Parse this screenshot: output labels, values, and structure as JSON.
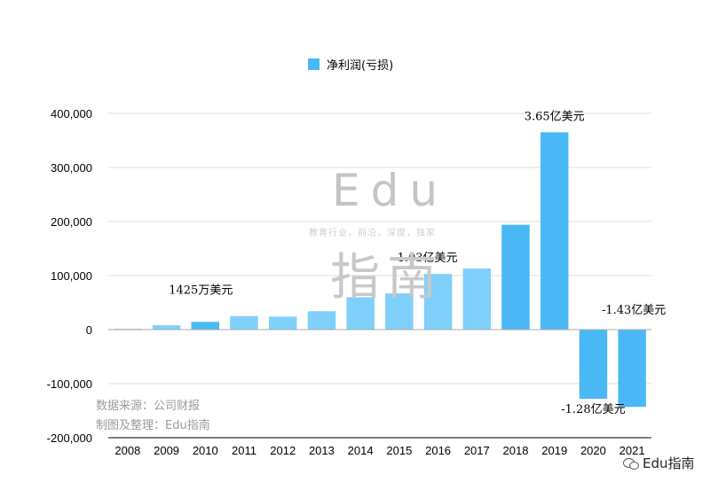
{
  "chart_data": {
    "type": "bar",
    "legend": "净利润(亏损)",
    "categories": [
      "2008",
      "2009",
      "2010",
      "2011",
      "2012",
      "2013",
      "2014",
      "2015",
      "2016",
      "2017",
      "2018",
      "2019",
      "2020",
      "2021"
    ],
    "series": [
      {
        "name": "净利润(亏损)",
        "values": [
          1500,
          8000,
          14250,
          25000,
          24000,
          34000,
          60000,
          67000,
          103000,
          113000,
          194000,
          365000,
          -128000,
          -143000
        ]
      }
    ],
    "ylim": [
      -200000,
      400000
    ],
    "yticks": [
      400000,
      300000,
      200000,
      100000,
      0,
      -100000,
      -200000
    ],
    "ytick_labels": [
      "400,000",
      "300,000",
      "200,000",
      "100,000",
      "0",
      "-100,000",
      "-200,000"
    ],
    "annotations": [
      {
        "category": "2010",
        "value": 14250,
        "text": "1425万美元"
      },
      {
        "category": "2016",
        "value": 103000,
        "text": "1.03亿美元"
      },
      {
        "category": "2019",
        "value": 365000,
        "text": "3.65亿美元"
      },
      {
        "category": "2020",
        "value": -128000,
        "text": "-1.28亿美元"
      },
      {
        "category": "2021",
        "value": -143000,
        "text": "-1.43亿美元"
      }
    ],
    "colors": {
      "light": "#7fd0fb",
      "dark": "#4ab8f5",
      "grid": "#dddddd",
      "axis": "#333333"
    },
    "emphasized_categories": [
      "2010",
      "2018",
      "2019",
      "2020",
      "2021"
    ]
  },
  "watermark": {
    "edu": "Edu",
    "slogan": "教育行业，前沿，深度，独家",
    "zhinan": "指南"
  },
  "source": {
    "line1": "数据来源：公司财报",
    "line2": "制图及整理：Edu指南"
  },
  "brand": "Edu指南"
}
